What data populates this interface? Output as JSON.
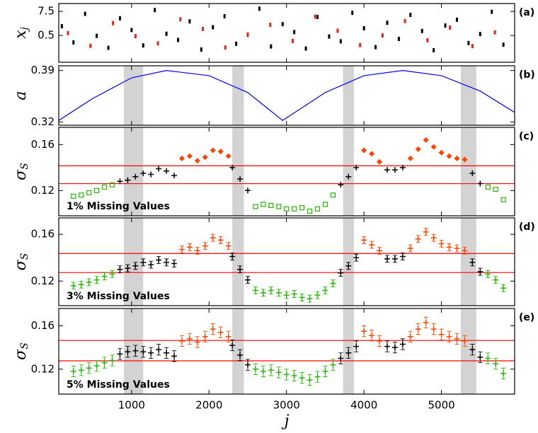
{
  "chart_data": [
    {
      "type": "scatter",
      "panel_label": "(a)",
      "ylabel": "x",
      "ylabel_sub": "j",
      "ylim": [
        -7.3,
        9.8
      ],
      "yticks": [
        0.5,
        7.5
      ],
      "series": [
        {
          "color": "#000000",
          "marker": "dash",
          "x": [
            100,
            250,
            400,
            550,
            700,
            850,
            1000,
            1150,
            1300,
            1450,
            1600,
            1750,
            1900,
            2050,
            2200,
            2350,
            2500,
            2650,
            2800,
            2950,
            3100,
            3250,
            3400,
            3550,
            3700,
            3850,
            4000,
            4150,
            4300,
            4450,
            4600,
            4750,
            4900,
            5050,
            5200,
            5350,
            5500,
            5650,
            5800
          ],
          "values": [
            3.2,
            -1.5,
            6.8,
            0.4,
            -3.1,
            5.5,
            2.1,
            -2.4,
            7.9,
            1.0,
            -0.8,
            4.6,
            -3.6,
            2.9,
            6.1,
            -1.9,
            0.7,
            8.3,
            -2.7,
            3.8,
            1.5,
            -3.3,
            5.9,
            0.2,
            -1.2,
            7.1,
            2.6,
            -2.9,
            4.2,
            -0.5,
            6.5,
            1.8,
            -3.8,
            3.4,
            5.1,
            -1.7,
            0.9,
            7.4,
            -2.2
          ]
        },
        {
          "color": "#ee2211",
          "marker": "dash",
          "x": [
            180,
            470,
            760,
            1050,
            1340,
            1630,
            1920,
            2210,
            2500,
            2790,
            3080,
            3370,
            3660,
            3950,
            4240,
            4530,
            4820,
            5110,
            5400,
            5690
          ],
          "values": [
            1.2,
            -2.5,
            4.1,
            0.3,
            -1.8,
            5.2,
            2.4,
            -3.0,
            0.8,
            3.6,
            -1.1,
            6.0,
            1.9,
            -2.3,
            0.5,
            4.7,
            -0.9,
            2.8,
            -2.6,
            1.4
          ]
        }
      ]
    },
    {
      "type": "line",
      "panel_label": "(b)",
      "ylabel": "a",
      "ylim": [
        0.3155,
        0.3964
      ],
      "yticks": [
        0.32,
        0.39
      ],
      "color": "#0000ff",
      "x": [
        60,
        500,
        1000,
        1450,
        2000,
        2500,
        2950,
        3500,
        4000,
        4500,
        5000,
        5500,
        5945
      ],
      "values": [
        0.322,
        0.352,
        0.38,
        0.39,
        0.383,
        0.36,
        0.322,
        0.36,
        0.383,
        0.39,
        0.383,
        0.362,
        0.333
      ],
      "shaded_regions": [
        [
          900,
          1150
        ],
        [
          2300,
          2450
        ],
        [
          3730,
          3870
        ],
        [
          5250,
          5450
        ]
      ]
    },
    {
      "type": "scatter",
      "panel_label": "(c)",
      "ylabel": "σ",
      "ylabel_sub": "S",
      "ylim": [
        0.098,
        0.175
      ],
      "yticks": [
        0.12,
        0.16
      ],
      "annotation": "1% Missing Values",
      "hlines": [
        0.1415,
        0.126
      ],
      "hline_color": "#ff0000",
      "series": [
        {
          "color": "#22bb00",
          "marker": "square",
          "x": [
            250,
            350,
            450,
            550,
            650,
            750,
            2600,
            2700,
            2800,
            2900,
            3000,
            3100,
            3200,
            3300,
            3400,
            3500,
            3600,
            5600,
            5700,
            5800
          ],
          "values": [
            0.115,
            0.116,
            0.118,
            0.12,
            0.123,
            0.125,
            0.106,
            0.108,
            0.107,
            0.106,
            0.104,
            0.104,
            0.105,
            0.102,
            0.104,
            0.108,
            0.116,
            0.123,
            0.121,
            0.112
          ]
        },
        {
          "color": "#000000",
          "marker": "plus",
          "x": [
            850,
            950,
            1050,
            1150,
            1250,
            1350,
            1450,
            1550,
            2300,
            2400,
            2500,
            3700,
            3800,
            3900,
            4300,
            4400,
            4500,
            5400,
            5500
          ],
          "values": [
            0.128,
            0.129,
            0.132,
            0.135,
            0.134,
            0.139,
            0.137,
            0.133,
            0.14,
            0.13,
            0.12,
            0.125,
            0.132,
            0.14,
            0.138,
            0.138,
            0.14,
            0.135,
            0.126
          ]
        },
        {
          "color": "#ff4400",
          "marker": "diamond",
          "x": [
            1650,
            1750,
            1850,
            1950,
            2050,
            2150,
            2250,
            4000,
            4100,
            4200,
            4600,
            4700,
            4800,
            4900,
            5000,
            5100,
            5200,
            5300
          ],
          "values": [
            0.148,
            0.15,
            0.146,
            0.149,
            0.155,
            0.154,
            0.15,
            0.155,
            0.152,
            0.145,
            0.148,
            0.156,
            0.164,
            0.158,
            0.153,
            0.15,
            0.148,
            0.147
          ]
        }
      ]
    },
    {
      "type": "errorbar",
      "panel_label": "(d)",
      "ylabel": "σ",
      "ylabel_sub": "S",
      "ylim": [
        0.099,
        0.174
      ],
      "yticks": [
        0.12,
        0.16
      ],
      "annotation": "3% Missing Values",
      "hlines": [
        0.1436,
        0.1273
      ],
      "hline_color": "#ff0000",
      "error": 0.003,
      "series": [
        {
          "color": "#22bb00",
          "marker": "plus",
          "x": [
            250,
            350,
            450,
            550,
            650,
            750,
            2600,
            2700,
            2800,
            2900,
            3000,
            3100,
            3200,
            3300,
            3400,
            3500,
            3600,
            5600,
            5700,
            5800
          ],
          "values": [
            0.116,
            0.117,
            0.119,
            0.121,
            0.124,
            0.126,
            0.112,
            0.11,
            0.112,
            0.11,
            0.108,
            0.109,
            0.106,
            0.105,
            0.108,
            0.112,
            0.118,
            0.126,
            0.121,
            0.114
          ]
        },
        {
          "color": "#000000",
          "marker": "plus",
          "x": [
            850,
            950,
            1050,
            1150,
            1250,
            1350,
            1450,
            1550,
            2300,
            2400,
            2500,
            3700,
            3800,
            3900,
            4300,
            4400,
            4500,
            5400,
            5500
          ],
          "values": [
            0.13,
            0.131,
            0.133,
            0.136,
            0.134,
            0.138,
            0.136,
            0.135,
            0.141,
            0.13,
            0.121,
            0.127,
            0.133,
            0.14,
            0.139,
            0.139,
            0.141,
            0.136,
            0.128
          ]
        },
        {
          "color": "#ff4400",
          "marker": "plus",
          "x": [
            1650,
            1750,
            1850,
            1950,
            2050,
            2150,
            2250,
            4000,
            4100,
            4200,
            4600,
            4700,
            4800,
            4900,
            5000,
            5100,
            5200,
            5300
          ],
          "values": [
            0.147,
            0.149,
            0.146,
            0.15,
            0.157,
            0.155,
            0.15,
            0.155,
            0.151,
            0.146,
            0.148,
            0.156,
            0.162,
            0.157,
            0.152,
            0.149,
            0.148,
            0.146
          ]
        }
      ]
    },
    {
      "type": "errorbar",
      "panel_label": "(e)",
      "ylabel": "σ",
      "ylabel_sub": "S",
      "ylim": [
        0.097,
        0.176
      ],
      "yticks": [
        0.12,
        0.16
      ],
      "annotation": "5% Missing Values",
      "hlines": [
        0.1465,
        0.1277
      ],
      "hline_color": "#ff0000",
      "error": 0.005,
      "xlabel": "j",
      "xlim": [
        60,
        5945
      ],
      "xticks": [
        1000,
        2000,
        3000,
        4000,
        5000
      ],
      "series": [
        {
          "color": "#22bb00",
          "marker": "plus",
          "x": [
            250,
            350,
            450,
            550,
            650,
            750,
            2600,
            2700,
            2800,
            2900,
            3000,
            3100,
            3200,
            3300,
            3400,
            3500,
            3600,
            5600,
            5700,
            5800
          ],
          "values": [
            0.118,
            0.119,
            0.121,
            0.123,
            0.126,
            0.128,
            0.12,
            0.118,
            0.119,
            0.117,
            0.115,
            0.114,
            0.112,
            0.11,
            0.113,
            0.118,
            0.124,
            0.13,
            0.125,
            0.116
          ]
        },
        {
          "color": "#000000",
          "marker": "plus",
          "x": [
            850,
            950,
            1050,
            1150,
            1250,
            1350,
            1450,
            1550,
            2300,
            2400,
            2500,
            3700,
            3800,
            3900,
            4300,
            4400,
            4500,
            5400,
            5500
          ],
          "values": [
            0.134,
            0.136,
            0.137,
            0.136,
            0.135,
            0.138,
            0.135,
            0.132,
            0.142,
            0.133,
            0.124,
            0.13,
            0.135,
            0.141,
            0.141,
            0.14,
            0.143,
            0.138,
            0.131
          ]
        },
        {
          "color": "#ff4400",
          "marker": "plus",
          "x": [
            1650,
            1750,
            1850,
            1950,
            2050,
            2150,
            2250,
            4000,
            4100,
            4200,
            4600,
            4700,
            4800,
            4900,
            5000,
            5100,
            5200,
            5300
          ],
          "values": [
            0.146,
            0.148,
            0.145,
            0.15,
            0.157,
            0.154,
            0.15,
            0.155,
            0.151,
            0.146,
            0.15,
            0.157,
            0.163,
            0.157,
            0.152,
            0.15,
            0.148,
            0.146
          ]
        }
      ]
    }
  ]
}
